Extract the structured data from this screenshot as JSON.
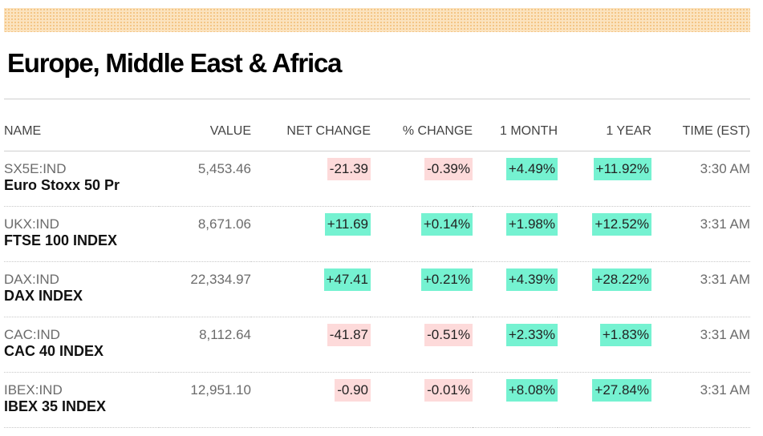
{
  "title": "Europe, Middle East & Africa",
  "colors": {
    "up": "#75f2d1",
    "down": "#fddada",
    "band": "#fbe3bf"
  },
  "columns": {
    "name": "NAME",
    "value": "VALUE",
    "net_change": "NET CHANGE",
    "pct_change": "% CHANGE",
    "one_month": "1 MONTH",
    "one_year": "1 YEAR",
    "time": "TIME (EST)"
  },
  "rows": [
    {
      "ticker": "SX5E:IND",
      "name": "Euro Stoxx 50 Pr",
      "value": "5,453.46",
      "net_change": "-21.39",
      "pct_change": "-0.39%",
      "one_month": "+4.49%",
      "one_year": "+11.92%",
      "time": "3:30 AM"
    },
    {
      "ticker": "UKX:IND",
      "name": "FTSE 100 INDEX",
      "value": "8,671.06",
      "net_change": "+11.69",
      "pct_change": "+0.14%",
      "one_month": "+1.98%",
      "one_year": "+12.52%",
      "time": "3:31 AM"
    },
    {
      "ticker": "DAX:IND",
      "name": "DAX INDEX",
      "value": "22,334.97",
      "net_change": "+47.41",
      "pct_change": "+0.21%",
      "one_month": "+4.39%",
      "one_year": "+28.22%",
      "time": "3:31 AM"
    },
    {
      "ticker": "CAC:IND",
      "name": "CAC 40 INDEX",
      "value": "8,112.64",
      "net_change": "-41.87",
      "pct_change": "-0.51%",
      "one_month": "+2.33%",
      "one_year": "+1.83%",
      "time": "3:31 AM"
    },
    {
      "ticker": "IBEX:IND",
      "name": "IBEX 35 INDEX",
      "value": "12,951.10",
      "net_change": "-0.90",
      "pct_change": "-0.01%",
      "one_month": "+8.08%",
      "one_year": "+27.84%",
      "time": "3:31 AM"
    }
  ]
}
